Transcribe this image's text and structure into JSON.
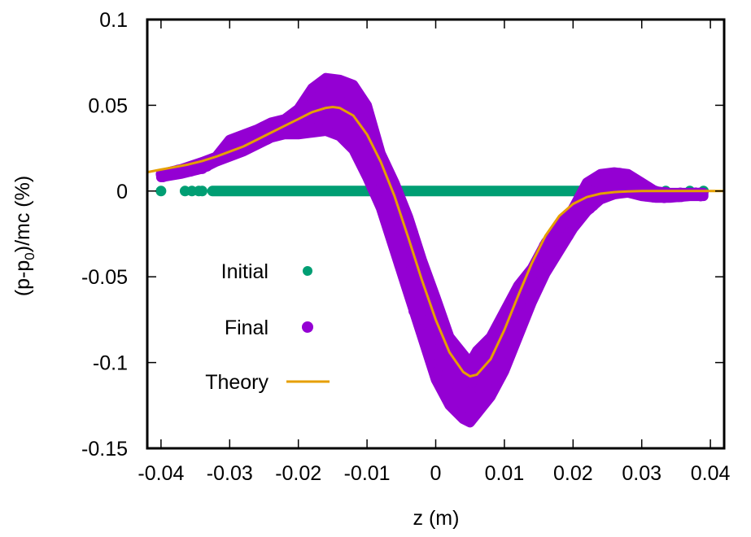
{
  "chart_data": {
    "type": "scatter",
    "title": "",
    "xlabel": "z (m)",
    "ylabel_main": "(p-p",
    "ylabel_sub": "0",
    "ylabel_rest": ")/mc (%)",
    "xlim": [
      -0.042,
      0.042
    ],
    "ylim": [
      -0.15,
      0.1
    ],
    "grid": false,
    "legend_position": "center-left",
    "xticks": [
      -0.04,
      -0.03,
      -0.02,
      -0.01,
      0,
      0.01,
      0.02,
      0.03,
      0.04
    ],
    "xtick_labels": [
      "-0.04",
      "-0.03",
      "-0.02",
      "-0.01",
      "0",
      "0.01",
      "0.02",
      "0.03",
      "0.04"
    ],
    "yticks": [
      0.1,
      0.05,
      0,
      -0.05,
      -0.1,
      -0.15
    ],
    "ytick_labels": [
      "0.1",
      "0.05",
      "0",
      "-0.05",
      "-0.1",
      "-0.15"
    ],
    "series": [
      {
        "name": "Initial",
        "kind": "points",
        "color": "#009e73",
        "x_band": [
          -0.0325,
          0.0275
        ],
        "y": 0,
        "isolated_x": [
          -0.04,
          -0.0365,
          -0.0355,
          -0.0345,
          -0.034,
          0.028,
          0.029,
          0.0305,
          0.032,
          0.0335,
          0.037,
          0.039
        ]
      },
      {
        "name": "Final",
        "kind": "points",
        "color": "#9400d3",
        "envelope": {
          "z": [
            -0.04,
            -0.037,
            -0.034,
            -0.032,
            -0.03,
            -0.028,
            -0.026,
            -0.024,
            -0.022,
            -0.02,
            -0.018,
            -0.016,
            -0.014,
            -0.012,
            -0.01,
            -0.008,
            -0.006,
            -0.004,
            -0.002,
            0.0,
            0.002,
            0.004,
            0.005,
            0.006,
            0.008,
            0.01,
            0.012,
            0.014,
            0.016,
            0.018,
            0.02,
            0.022,
            0.024,
            0.026,
            0.028,
            0.03,
            0.032,
            0.034,
            0.037,
            0.039
          ],
          "upper": [
            0.01,
            0.013,
            0.017,
            0.02,
            0.03,
            0.033,
            0.036,
            0.04,
            0.042,
            0.048,
            0.06,
            0.066,
            0.065,
            0.062,
            0.05,
            0.022,
            0.005,
            -0.015,
            -0.04,
            -0.062,
            -0.085,
            -0.095,
            -0.1,
            -0.093,
            -0.085,
            -0.07,
            -0.055,
            -0.045,
            -0.03,
            -0.02,
            -0.01,
            0.005,
            0.01,
            0.011,
            0.01,
            0.005,
            0.0,
            -0.001,
            -0.001,
            -0.001
          ],
          "lower": [
            0.008,
            0.01,
            0.013,
            0.017,
            0.02,
            0.023,
            0.027,
            0.031,
            0.033,
            0.033,
            0.034,
            0.035,
            0.032,
            0.024,
            0.008,
            -0.01,
            -0.035,
            -0.06,
            -0.085,
            -0.11,
            -0.125,
            -0.133,
            -0.135,
            -0.13,
            -0.12,
            -0.105,
            -0.085,
            -0.065,
            -0.048,
            -0.035,
            -0.022,
            -0.012,
            -0.005,
            -0.002,
            -0.001,
            -0.003,
            -0.004,
            -0.004,
            -0.003,
            -0.003
          ]
        }
      },
      {
        "name": "Theory",
        "kind": "line",
        "color": "#e69f00",
        "x": [
          -0.042,
          -0.04,
          -0.038,
          -0.036,
          -0.034,
          -0.032,
          -0.03,
          -0.028,
          -0.026,
          -0.024,
          -0.022,
          -0.02,
          -0.018,
          -0.016,
          -0.015,
          -0.014,
          -0.012,
          -0.01,
          -0.008,
          -0.006,
          -0.004,
          -0.002,
          0.0,
          0.002,
          0.004,
          0.005,
          0.006,
          0.008,
          0.01,
          0.012,
          0.014,
          0.016,
          0.018,
          0.02,
          0.022,
          0.024,
          0.026,
          0.028,
          0.03,
          0.032,
          0.034,
          0.036,
          0.038,
          0.04,
          0.042
        ],
        "y": [
          0.011,
          0.0125,
          0.014,
          0.0155,
          0.0175,
          0.02,
          0.023,
          0.026,
          0.03,
          0.034,
          0.038,
          0.042,
          0.046,
          0.0485,
          0.049,
          0.0485,
          0.044,
          0.033,
          0.017,
          -0.003,
          -0.027,
          -0.052,
          -0.075,
          -0.094,
          -0.1055,
          -0.108,
          -0.107,
          -0.098,
          -0.081,
          -0.061,
          -0.042,
          -0.026,
          -0.0145,
          -0.0075,
          -0.0035,
          -0.0015,
          -0.0006,
          -0.0002,
          0.0,
          0.0,
          0.0,
          0.0,
          0.0,
          0.0,
          0.0
        ]
      }
    ]
  }
}
